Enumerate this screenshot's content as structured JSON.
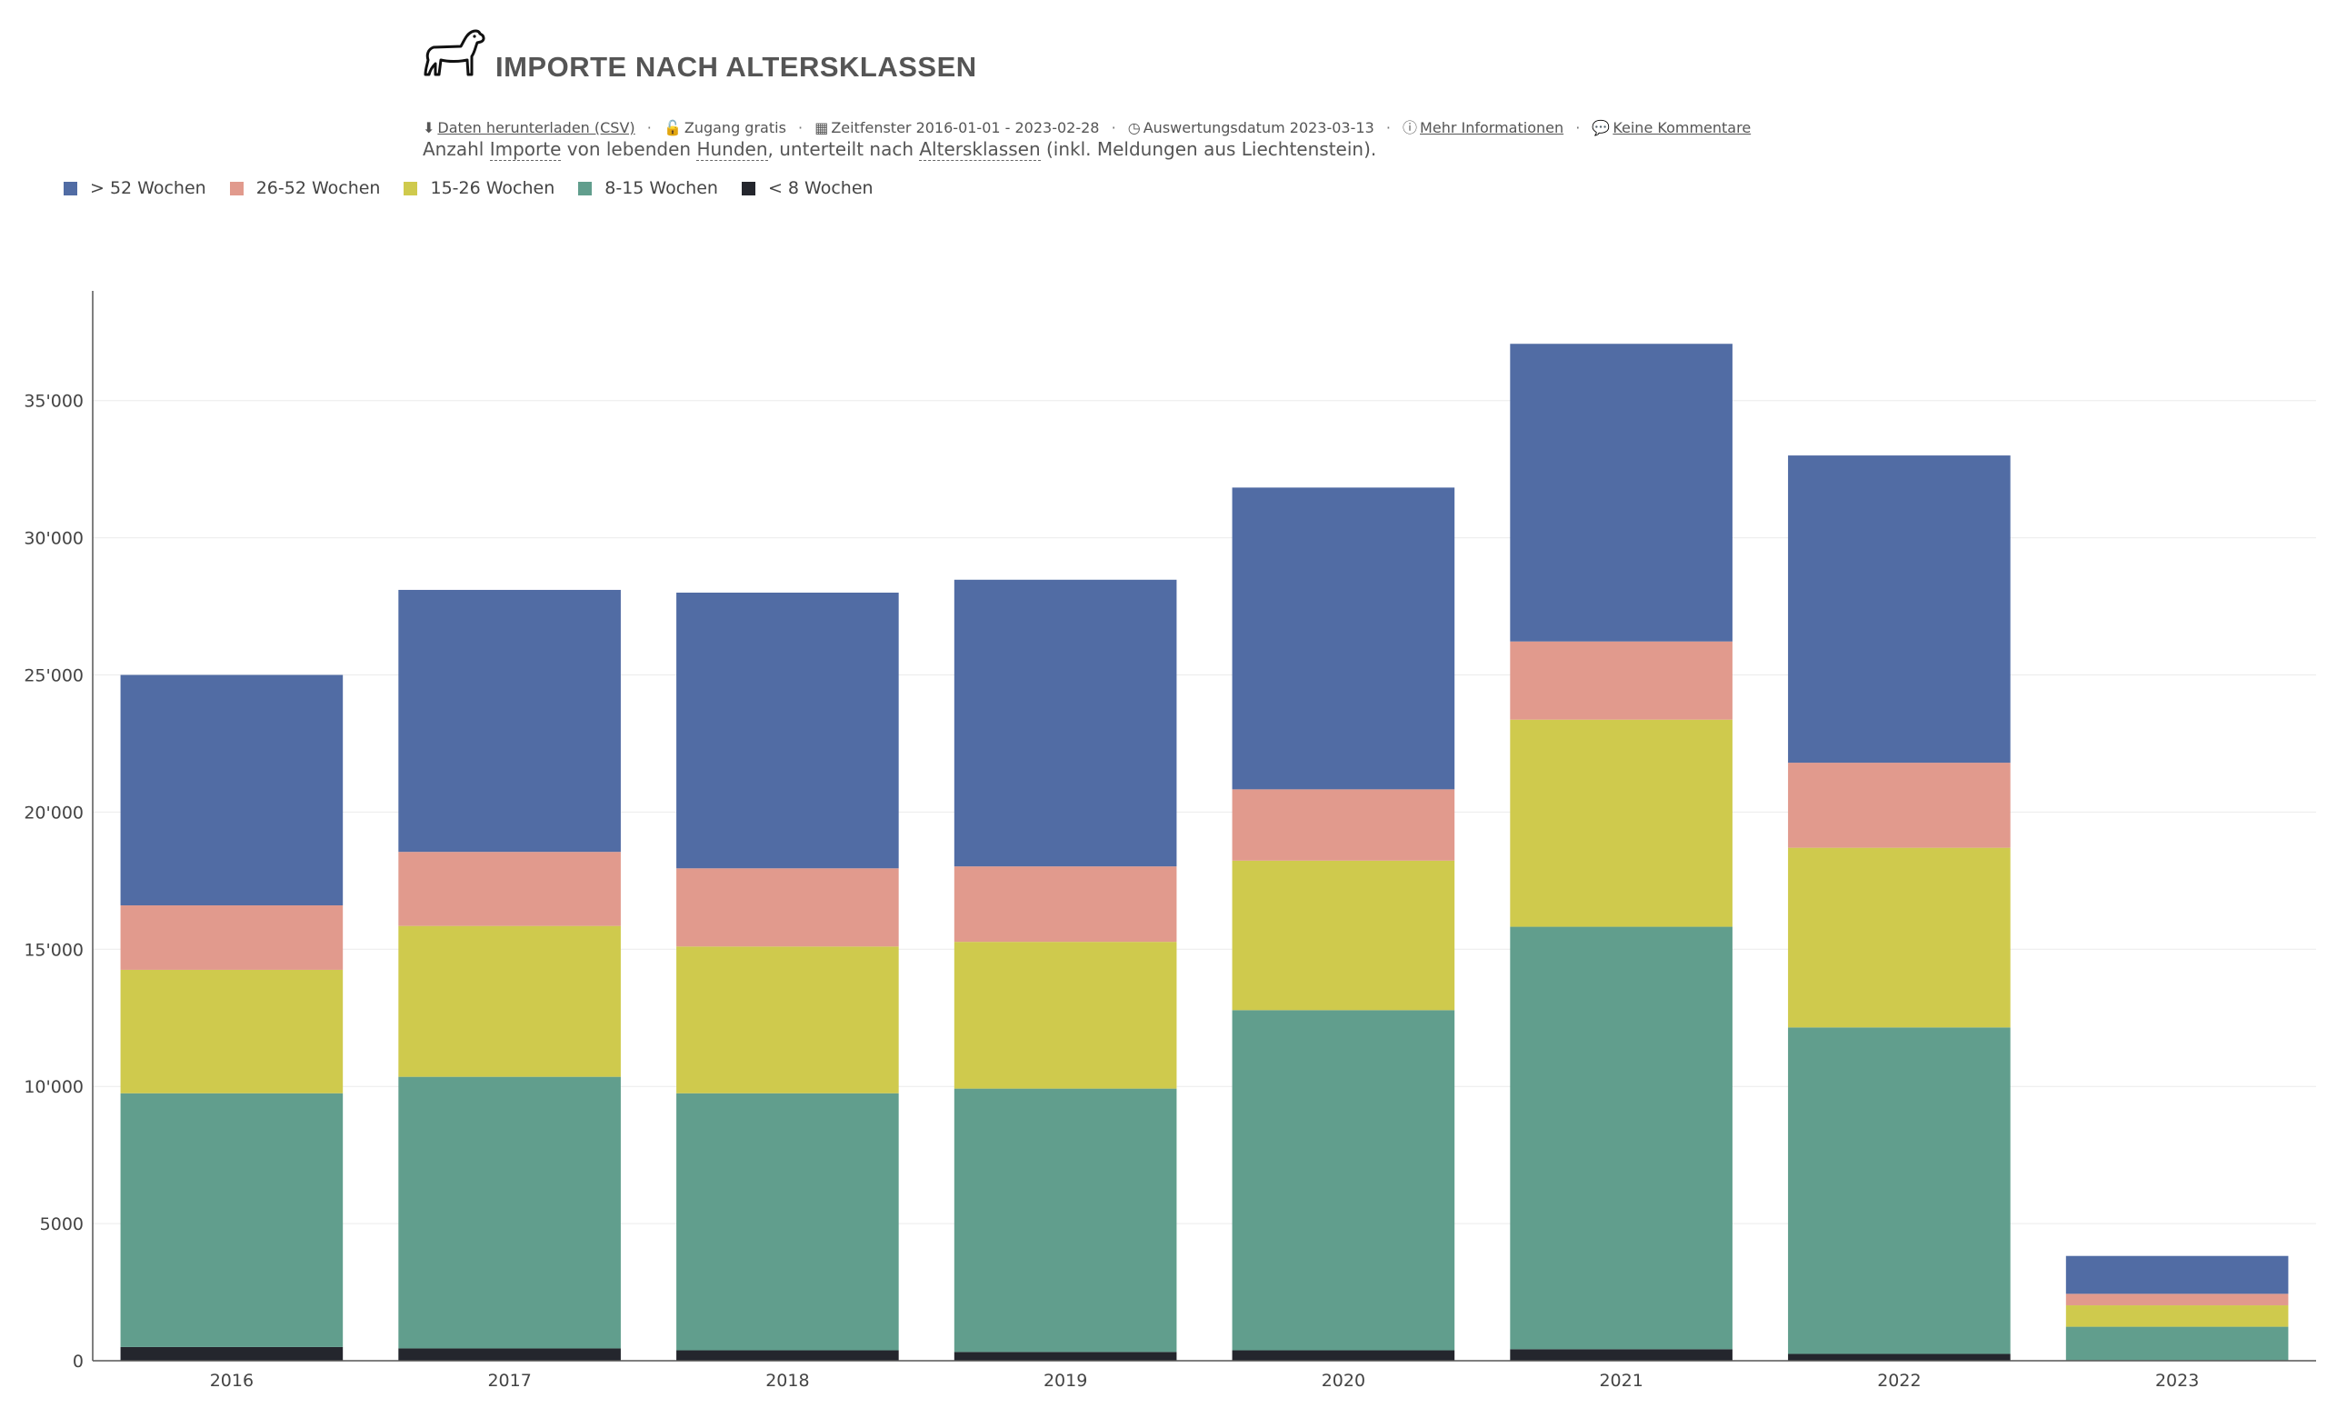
{
  "header": {
    "title": "IMPORTE NACH ALTERSKLASSEN",
    "icon": "dog-icon"
  },
  "meta": {
    "download": "Daten herunterladen (CSV)",
    "access": "Zugang gratis",
    "window": "Zeitfenster 2016-01-01 - 2023-02-28",
    "date": "Auswertungsdatum 2023-03-13",
    "more": "Mehr Informationen",
    "comments": "Keine Kommentare"
  },
  "description": {
    "p1": "Anzahl ",
    "w1": "Importe",
    "p2": " von lebenden ",
    "w2": "Hunden",
    "p3": ", unterteilt nach ",
    "w3": "Altersklassen",
    "p4": " (inkl. Meldungen aus Liechtenstein)."
  },
  "legend": [
    {
      "label": "> 52 Wochen",
      "color": "#516ca4"
    },
    {
      "label": "26-52 Wochen",
      "color": "#e19a8d"
    },
    {
      "label": "15-26 Wochen",
      "color": "#cfca4d"
    },
    {
      "label": "8-15 Wochen",
      "color": "#619e8d"
    },
    {
      "label": "< 8 Wochen",
      "color": "#24262d"
    }
  ],
  "chart_data": {
    "type": "bar",
    "stacked": true,
    "categories": [
      "2016",
      "2017",
      "2018",
      "2019",
      "2020",
      "2021",
      "2022",
      "2023"
    ],
    "series": [
      {
        "name": "< 8 Wochen",
        "color": "#24262d",
        "values": [
          500,
          450,
          380,
          320,
          380,
          420,
          250,
          20
        ]
      },
      {
        "name": "8-15 Wochen",
        "color": "#619e8d",
        "values": [
          9250,
          9900,
          9370,
          9600,
          12400,
          15400,
          11900,
          1220
        ]
      },
      {
        "name": "15-26 Wochen",
        "color": "#cfca4d",
        "values": [
          4500,
          5500,
          5350,
          5350,
          5450,
          7550,
          6550,
          780
        ]
      },
      {
        "name": "26-52 Wochen",
        "color": "#e19a8d",
        "values": [
          2350,
          2700,
          2850,
          2750,
          2600,
          2850,
          3100,
          420
        ]
      },
      {
        "name": "> 52 Wochen",
        "color": "#516ca4",
        "values": [
          8400,
          9550,
          10050,
          10450,
          11000,
          10850,
          11200,
          1380
        ]
      }
    ],
    "yticks": [
      0,
      5000,
      10000,
      15000,
      20000,
      25000,
      30000,
      35000
    ],
    "ytick_labels": [
      "0",
      "5000",
      "10'000",
      "15'000",
      "20'000",
      "25'000",
      "30'000",
      "35'000"
    ],
    "ylim": [
      0,
      39000
    ],
    "grid": true,
    "legend_position": "top-left"
  }
}
